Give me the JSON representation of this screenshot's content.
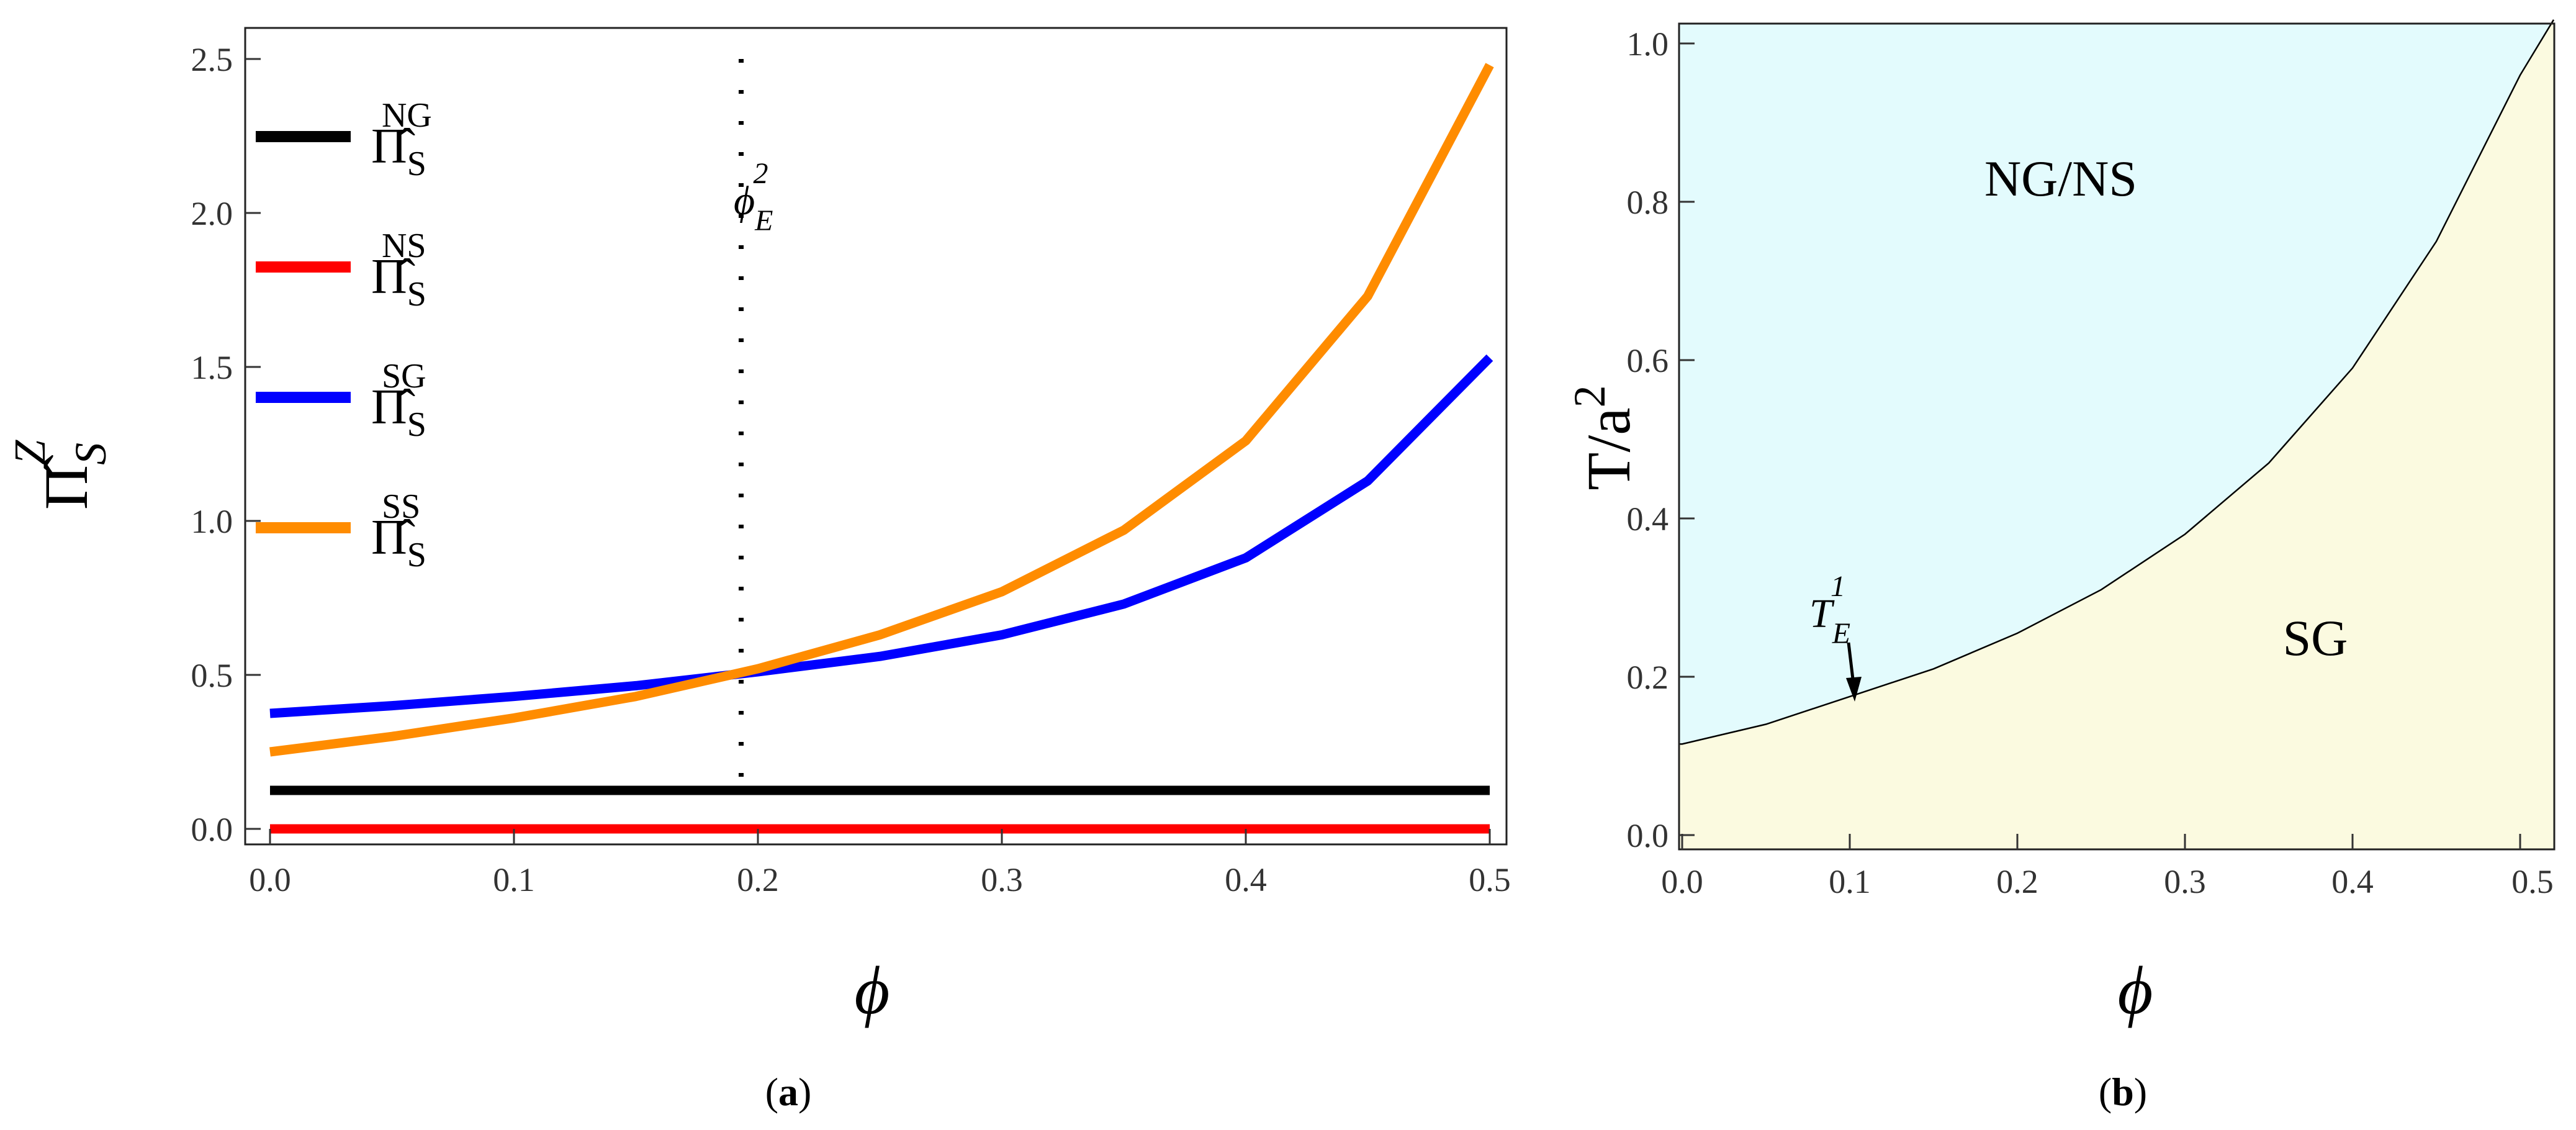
{
  "chart_data": [
    {
      "panel": "(a)",
      "panel_letter": "a",
      "type": "line",
      "xlabel": "ϕ",
      "ylabel_base": "Π̂",
      "ylabel_sup": "Z",
      "ylabel_sub": "S",
      "xlim": [
        0,
        0.5
      ],
      "ylim": [
        0,
        2.5
      ],
      "xticks": [
        "0.0",
        "0.1",
        "0.2",
        "0.3",
        "0.4",
        "0.5"
      ],
      "yticks": [
        "0.0",
        "0.5",
        "1.0",
        "1.5",
        "2.0",
        "2.5"
      ],
      "legend": [
        {
          "base": "Π̂",
          "sub": "S",
          "sup": "NG",
          "color": "#000000"
        },
        {
          "base": "Π̂",
          "sub": "S",
          "sup": "NS",
          "color": "#ff0000"
        },
        {
          "base": "Π̂",
          "sub": "S",
          "sup": "SG",
          "color": "#0000ff"
        },
        {
          "base": "Π̂",
          "sub": "S",
          "sup": "SS",
          "color": "#ff8c00"
        }
      ],
      "series": [
        {
          "name": "NG",
          "color": "#000000",
          "x": [
            0,
            0.5
          ],
          "y": [
            0.125,
            0.125
          ]
        },
        {
          "name": "NS",
          "color": "#ff0000",
          "x": [
            0,
            0.5
          ],
          "y": [
            0.0,
            0.0
          ]
        },
        {
          "name": "SG",
          "color": "#0000ff",
          "x": [
            0,
            0.05,
            0.1,
            0.15,
            0.2,
            0.25,
            0.3,
            0.35,
            0.4,
            0.45,
            0.5
          ],
          "y": [
            0.375,
            0.4,
            0.43,
            0.465,
            0.51,
            0.56,
            0.63,
            0.73,
            0.88,
            1.13,
            1.53
          ]
        },
        {
          "name": "SS",
          "color": "#ff8c00",
          "x": [
            0,
            0.05,
            0.1,
            0.15,
            0.2,
            0.25,
            0.3,
            0.35,
            0.4,
            0.45,
            0.5
          ],
          "y": [
            0.25,
            0.3,
            0.36,
            0.43,
            0.52,
            0.63,
            0.77,
            0.97,
            1.26,
            1.73,
            2.48
          ]
        }
      ],
      "annotation": {
        "base": "ϕ",
        "sub": "E",
        "sup": "2",
        "x": 0.2
      }
    },
    {
      "panel": "(b)",
      "panel_letter": "b",
      "type": "area",
      "xlabel": "ϕ",
      "ylabel_base": "T/a",
      "ylabel_sup": "2",
      "xlim": [
        0,
        0.5
      ],
      "ylim": [
        0,
        1.0
      ],
      "xticks": [
        "0.0",
        "0.1",
        "0.2",
        "0.3",
        "0.4",
        "0.5"
      ],
      "yticks": [
        "0.0",
        "0.2",
        "0.4",
        "0.6",
        "0.8",
        "1.0"
      ],
      "boundary": {
        "x": [
          0,
          0.05,
          0.1,
          0.15,
          0.2,
          0.25,
          0.3,
          0.35,
          0.4,
          0.45,
          0.5,
          0.52
        ],
        "y": [
          0.115,
          0.14,
          0.175,
          0.21,
          0.255,
          0.31,
          0.38,
          0.47,
          0.59,
          0.75,
          0.96,
          1.03
        ]
      },
      "regions": [
        {
          "label": "NG/NS",
          "color": "#e3fbfd"
        },
        {
          "label": "SG",
          "color": "#fbfae0"
        }
      ],
      "annotation": {
        "base": "T",
        "sub": "E",
        "sup": "1",
        "x": 0.07,
        "y": 0.16
      }
    }
  ]
}
